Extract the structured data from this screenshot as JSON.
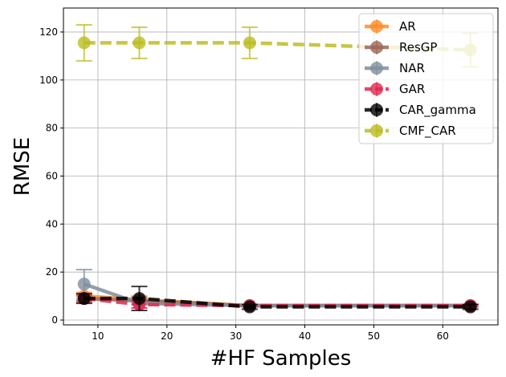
{
  "chart_data": {
    "type": "line",
    "xlabel": "#HF Samples",
    "ylabel": "RMSE",
    "x": [
      8,
      16,
      32,
      64
    ],
    "xlim": [
      5,
      68
    ],
    "ylim": [
      -2,
      130
    ],
    "xticks": [
      10,
      20,
      30,
      40,
      50,
      60
    ],
    "yticks": [
      0,
      20,
      40,
      60,
      80,
      100,
      120
    ],
    "grid": true,
    "legend_position": "top-right",
    "series": [
      {
        "name": "AR",
        "color": "#ff8c28",
        "dash": "solid",
        "values": [
          10.0,
          8.5,
          6.0,
          6.0
        ],
        "err": [
          1.5,
          1.5,
          0.5,
          0.5
        ]
      },
      {
        "name": "ResGP",
        "color": "#9c6657",
        "dash": "solid",
        "values": [
          9.0,
          8.0,
          6.0,
          6.0
        ],
        "err": [
          1.0,
          1.5,
          0.5,
          0.5
        ]
      },
      {
        "name": "NAR",
        "color": "#7f8e9e",
        "dash": "solid",
        "values": [
          15.0,
          7.0,
          6.0,
          6.0
        ],
        "err": [
          6.0,
          2.0,
          0.5,
          0.5
        ]
      },
      {
        "name": "GAR",
        "color": "#e0284f",
        "dash": "dashed",
        "values": [
          9.0,
          6.5,
          6.0,
          6.0
        ],
        "err": [
          1.5,
          1.5,
          0.5,
          0.5
        ]
      },
      {
        "name": "CAR_gamma",
        "color": "#000000",
        "dash": "dashed",
        "values": [
          9.0,
          9.0,
          5.5,
          5.5
        ],
        "err": [
          2.0,
          5.0,
          1.0,
          1.0
        ]
      },
      {
        "name": "CMF_CAR",
        "color": "#bcbd22",
        "dash": "dashed",
        "values": [
          115.5,
          115.5,
          115.5,
          112.5
        ],
        "err": [
          7.5,
          6.5,
          6.5,
          7.0
        ]
      }
    ]
  }
}
